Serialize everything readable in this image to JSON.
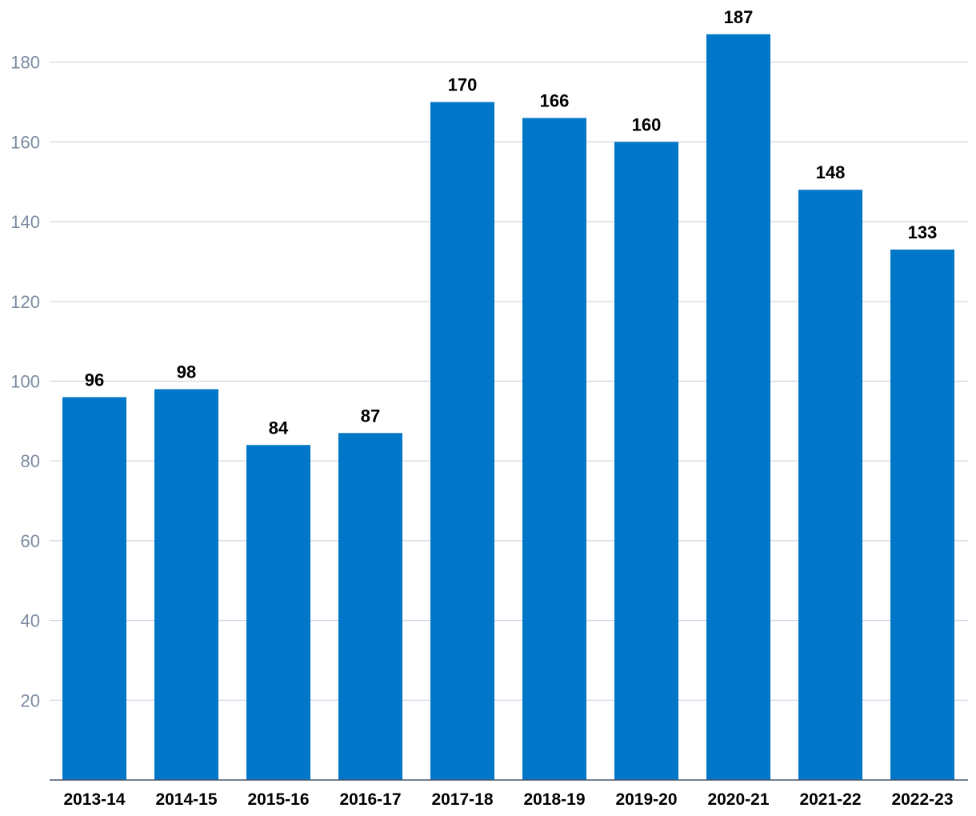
{
  "chart_data": {
    "type": "bar",
    "title": "",
    "xlabel": "",
    "ylabel": "",
    "categories": [
      "2013-14",
      "2014-15",
      "2015-16",
      "2016-17",
      "2017-18",
      "2018-19",
      "2019-20",
      "2020-21",
      "2021-22",
      "2022-23"
    ],
    "values": [
      96,
      98,
      84,
      87,
      170,
      166,
      160,
      187,
      148,
      133
    ],
    "data_labels": [
      "96",
      "98",
      "84",
      "87",
      "170",
      "166",
      "160",
      "187",
      "148",
      "133"
    ],
    "ylim": [
      0,
      190
    ],
    "yticks": [
      20,
      40,
      60,
      80,
      100,
      120,
      140,
      160,
      180
    ],
    "ytick_labels": [
      "20",
      "40",
      "60",
      "80",
      "100",
      "120",
      "140",
      "160",
      "180"
    ],
    "grid": true,
    "bar_color": "#0077c8"
  }
}
